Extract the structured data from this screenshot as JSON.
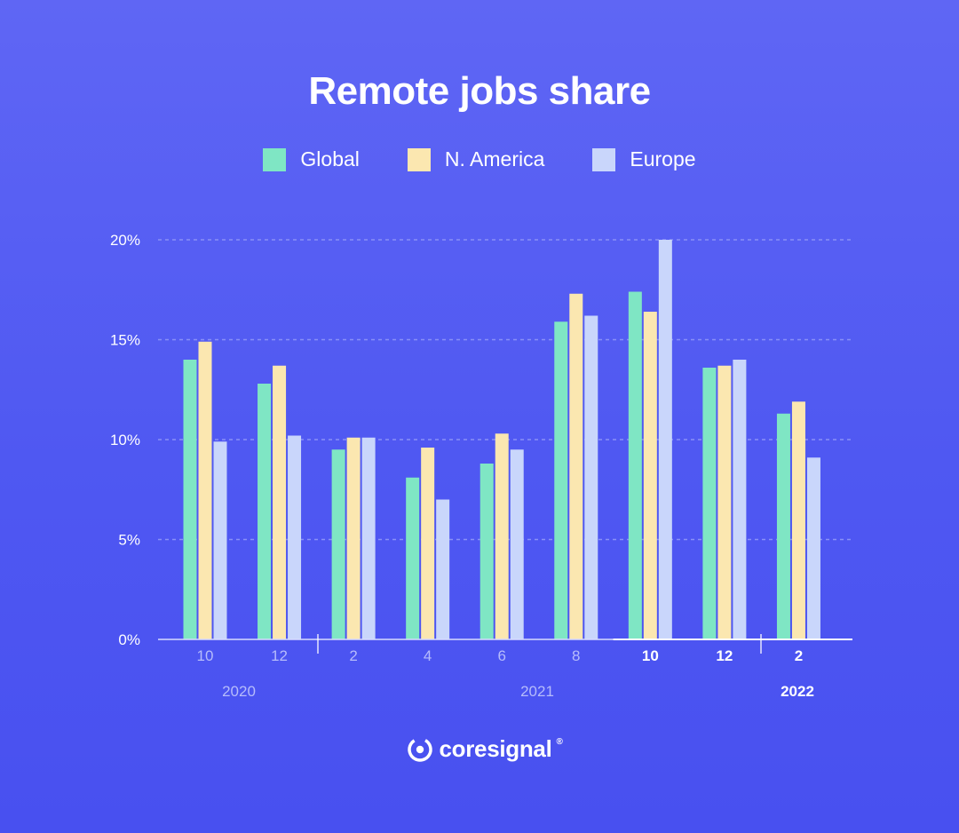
{
  "brand": {
    "name": "coresignal",
    "registered_mark": "®",
    "logo_icon": "coresignal-logo-icon"
  },
  "colors": {
    "Global": "#7fe6c4",
    "N. America": "#fbe7b0",
    "Europe": "#c9d6fb",
    "grid": "#8a91f7",
    "axis": "#d8dbff",
    "tick_text": "#b6bcfb"
  },
  "chart_data": {
    "type": "bar",
    "title": "Remote jobs share",
    "xlabel": "",
    "ylabel": "",
    "ylim": [
      0,
      20
    ],
    "yticks": [
      "0%",
      "5%",
      "10%",
      "15%",
      "20%"
    ],
    "grid": true,
    "legend_position": "top-center",
    "categories": [
      "10",
      "12",
      "2",
      "4",
      "6",
      "8",
      "10",
      "12",
      "2"
    ],
    "highlighted_categories": [
      6,
      7,
      8
    ],
    "year_groups": [
      {
        "label": "2020",
        "highlighted": false
      },
      {
        "label": "2021",
        "highlighted": false
      },
      {
        "label": "2022",
        "highlighted": true
      }
    ],
    "series": [
      {
        "name": "Global",
        "values": [
          14.0,
          12.8,
          9.5,
          8.1,
          8.8,
          15.9,
          17.4,
          13.6,
          11.3
        ]
      },
      {
        "name": "N. America",
        "values": [
          14.9,
          13.7,
          10.1,
          9.6,
          10.3,
          17.3,
          16.4,
          13.7,
          11.9
        ]
      },
      {
        "name": "Europe",
        "values": [
          9.9,
          10.2,
          10.1,
          7.0,
          9.5,
          16.2,
          20.0,
          14.0,
          9.1
        ]
      }
    ]
  }
}
